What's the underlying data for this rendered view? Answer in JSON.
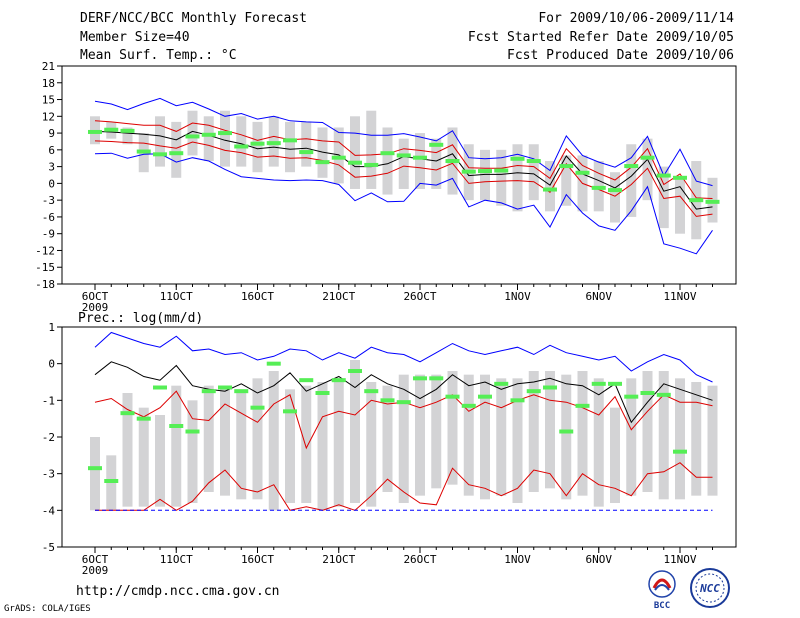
{
  "header": {
    "title": "DERF/NCC/BCC Monthly Forecast",
    "member_size": "Member Size=40",
    "variable": "Mean Surf. Temp.: °C",
    "period": "For 2009/10/06-2009/11/14",
    "started": "Fcst Started Refer Date 2009/10/05",
    "produced": "Fcst Produced Date 2009/10/06"
  },
  "footer": {
    "url": "http://cmdp.ncc.cma.gov.cn",
    "grads": "GrADS: COLA/IGES",
    "logo_bcc": "BCC",
    "logo_ncc": "NCC"
  },
  "colors": {
    "max_line": "#0000ff",
    "min_line": "#0000ff",
    "mean_line": "#000000",
    "spread_line": "#dd0000",
    "box": "#d3d3d5",
    "obs_bar": "#55ee55",
    "floor_line": "#0000ff"
  },
  "chart_data": [
    {
      "type": "line",
      "title": "Mean Surf. Temp.: °C",
      "xlabel": "",
      "ylabel": "",
      "x_tick_labels": [
        "6OCT",
        "11OCT",
        "16OCT",
        "21OCT",
        "26OCT",
        "1NOV",
        "6NOV",
        "11NOV"
      ],
      "x_tick_days": [
        1,
        6,
        11,
        16,
        21,
        27,
        32,
        37
      ],
      "x_year_label": "2009",
      "ylim": [
        -18,
        21
      ],
      "y_ticks": [
        21,
        18,
        15,
        12,
        9,
        6,
        3,
        0,
        -3,
        -6,
        -9,
        -12,
        -15,
        -18
      ],
      "day_range": [
        1,
        39
      ],
      "series": [
        {
          "name": "max",
          "values": [
            14.7,
            14.2,
            13.2,
            14.3,
            15.2,
            13.9,
            14.5,
            13.3,
            12.0,
            12.5,
            11.5,
            12.0,
            11.2,
            11.0,
            10.9,
            9.1,
            9.0,
            8.6,
            8.6,
            8.9,
            8.3,
            7.6,
            9.4,
            4.6,
            4.4,
            4.6,
            5.2,
            4.4,
            2.3,
            8.5,
            5.0,
            3.8,
            2.9,
            4.6,
            8.4,
            1.4,
            6.1,
            0.4,
            -0.4
          ]
        },
        {
          "name": "upper",
          "values": [
            11.2,
            11.0,
            10.7,
            10.4,
            10.4,
            9.3,
            10.8,
            10.4,
            9.5,
            8.7,
            7.7,
            8.4,
            7.8,
            8.0,
            7.6,
            7.4,
            5.0,
            5.1,
            5.3,
            6.2,
            5.9,
            5.5,
            6.9,
            2.8,
            2.7,
            2.7,
            3.2,
            3.0,
            0.9,
            6.2,
            3.2,
            1.8,
            0.6,
            2.9,
            6.2,
            -0.2,
            1.7,
            -2.6,
            -2.7
          ]
        },
        {
          "name": "mean",
          "values": [
            9.3,
            9.2,
            9.0,
            8.8,
            8.5,
            7.8,
            9.3,
            8.6,
            7.7,
            7.1,
            6.2,
            6.5,
            6.1,
            6.3,
            5.6,
            5.1,
            3.0,
            3.0,
            3.5,
            4.8,
            4.4,
            4.0,
            5.3,
            1.4,
            1.6,
            1.6,
            1.9,
            1.7,
            -0.3,
            4.9,
            1.7,
            0.5,
            -0.8,
            1.3,
            4.3,
            -1.4,
            -0.6,
            -4.6,
            -4.2
          ]
        },
        {
          "name": "lower",
          "values": [
            7.6,
            7.5,
            7.3,
            7.2,
            6.7,
            6.3,
            7.4,
            6.8,
            5.9,
            5.5,
            4.7,
            4.9,
            4.5,
            4.6,
            4.1,
            3.3,
            1.1,
            1.3,
            1.8,
            3.1,
            2.8,
            2.4,
            3.6,
            0.0,
            0.3,
            0.4,
            0.5,
            0.3,
            -1.6,
            3.5,
            0.0,
            -1.1,
            -2.3,
            -0.2,
            2.7,
            -2.7,
            -2.3,
            -5.9,
            -5.5
          ]
        },
        {
          "name": "min",
          "values": [
            5.3,
            5.4,
            4.5,
            5.2,
            5.3,
            3.8,
            4.6,
            4.0,
            2.5,
            1.2,
            0.9,
            0.6,
            0.5,
            0.6,
            0.5,
            -0.2,
            -3.1,
            -1.7,
            -3.3,
            -3.2,
            0.0,
            -0.3,
            0.9,
            -4.2,
            -3.0,
            -3.5,
            -4.6,
            -3.9,
            -7.8,
            -2.0,
            -5.3,
            -7.6,
            -8.4,
            -4.9,
            -0.6,
            -10.8,
            -11.6,
            -12.6,
            -8.4
          ]
        }
      ],
      "boxes": [
        [
          7,
          12
        ],
        [
          8,
          11
        ],
        [
          7,
          10
        ],
        [
          2,
          9
        ],
        [
          3,
          12
        ],
        [
          1,
          11
        ],
        [
          5,
          13
        ],
        [
          4,
          12
        ],
        [
          3,
          13
        ],
        [
          3,
          12
        ],
        [
          2,
          11
        ],
        [
          3,
          12
        ],
        [
          2,
          11
        ],
        [
          3,
          11
        ],
        [
          1,
          10
        ],
        [
          0,
          10
        ],
        [
          -1,
          12
        ],
        [
          -1,
          13
        ],
        [
          -2,
          10
        ],
        [
          -1,
          8
        ],
        [
          -1,
          9
        ],
        [
          -1,
          8
        ],
        [
          -2,
          10
        ],
        [
          -3,
          7
        ],
        [
          -3,
          6
        ],
        [
          -4,
          6
        ],
        [
          -5,
          7
        ],
        [
          -3,
          7
        ],
        [
          -5,
          4
        ],
        [
          -4,
          5
        ],
        [
          -5,
          5
        ],
        [
          -5,
          4
        ],
        [
          -7,
          2
        ],
        [
          -6,
          7
        ],
        [
          -3,
          8
        ],
        [
          -8,
          3
        ],
        [
          -9,
          1
        ],
        [
          -10,
          4
        ],
        [
          -7,
          1
        ]
      ],
      "observed": [
        9.2,
        9.6,
        9.4,
        5.7,
        5.2,
        5.4,
        8.4,
        8.7,
        9.0,
        6.6,
        7.1,
        7.2,
        7.7,
        5.6,
        3.8,
        4.6,
        3.7,
        3.3,
        5.4,
        5.0,
        4.6,
        6.9,
        4.0,
        2.1,
        2.2,
        2.3,
        4.4,
        4.0,
        -1.1,
        3.1,
        1.9,
        -0.8,
        -1.2,
        3.1,
        4.6,
        1.4,
        1.0,
        -3.0,
        -3.3
      ]
    },
    {
      "type": "line",
      "title": "Prec.: log(mm/d)",
      "xlabel": "",
      "ylabel": "",
      "x_tick_labels": [
        "6OCT",
        "11OCT",
        "16OCT",
        "21OCT",
        "26OCT",
        "1NOV",
        "6NOV",
        "11NOV"
      ],
      "x_tick_days": [
        1,
        6,
        11,
        16,
        21,
        27,
        32,
        37
      ],
      "x_year_label": "2009",
      "ylim": [
        -5,
        1
      ],
      "y_ticks": [
        1,
        0,
        -1,
        -2,
        -3,
        -4,
        -5
      ],
      "day_range": [
        1,
        39
      ],
      "series": [
        {
          "name": "max",
          "values": [
            0.45,
            0.85,
            0.7,
            0.55,
            0.45,
            0.75,
            0.35,
            0.4,
            0.25,
            0.3,
            0.1,
            0.2,
            0.4,
            0.35,
            0.1,
            0.3,
            0.15,
            0.45,
            0.3,
            0.25,
            0.05,
            0.3,
            0.55,
            0.35,
            0.25,
            0.35,
            0.45,
            0.25,
            0.5,
            0.3,
            0.2,
            0.1,
            0.2,
            -0.2,
            0.05,
            0.25,
            0.1,
            -0.3,
            -0.5
          ]
        },
        {
          "name": "mean",
          "values": [
            -0.3,
            0.05,
            -0.1,
            -0.35,
            -0.45,
            -0.05,
            -0.6,
            -0.7,
            -0.75,
            -0.55,
            -0.8,
            -0.6,
            -0.25,
            -0.75,
            -0.55,
            -0.35,
            -0.65,
            -0.3,
            -0.55,
            -0.7,
            -0.95,
            -0.7,
            -0.3,
            -0.6,
            -0.5,
            -0.7,
            -0.55,
            -0.5,
            -0.4,
            -0.55,
            -0.6,
            -0.85,
            -0.55,
            -1.6,
            -1.05,
            -0.55,
            -0.7,
            -0.85,
            -1.0
          ]
        },
        {
          "name": "upper",
          "values": [
            -1.05,
            -0.95,
            -1.25,
            -1.45,
            -1.2,
            -0.75,
            -1.5,
            -1.55,
            -1.1,
            -1.35,
            -1.6,
            -1.1,
            -0.85,
            -2.3,
            -1.45,
            -1.3,
            -1.4,
            -1.0,
            -1.1,
            -1.05,
            -1.2,
            -1.05,
            -0.85,
            -1.3,
            -1.05,
            -1.2,
            -1.0,
            -0.85,
            -1.0,
            -1.05,
            -1.2,
            -1.4,
            -0.9,
            -1.8,
            -1.3,
            -0.85,
            -1.05,
            -1.05,
            -1.15
          ]
        },
        {
          "name": "lower",
          "values": [
            -4.0,
            -4.0,
            -4.0,
            -4.0,
            -3.7,
            -4.0,
            -3.75,
            -3.25,
            -2.9,
            -3.4,
            -3.5,
            -3.3,
            -4.0,
            -3.9,
            -4.0,
            -3.85,
            -4.0,
            -3.6,
            -3.15,
            -3.5,
            -3.8,
            -3.85,
            -2.85,
            -3.3,
            -3.4,
            -3.6,
            -3.4,
            -2.9,
            -3.0,
            -3.6,
            -3.0,
            -3.3,
            -3.4,
            -3.6,
            -3.0,
            -2.95,
            -2.7,
            -3.1,
            -3.1
          ]
        },
        {
          "name": "floor",
          "values": [
            -4,
            -4,
            -4,
            -4,
            -4,
            -4,
            -4,
            -4,
            -4,
            -4,
            -4,
            -4,
            -4,
            -4,
            -4,
            -4,
            -4,
            -4,
            -4,
            -4,
            -4,
            -4,
            -4,
            -4,
            -4,
            -4,
            -4,
            -4,
            -4,
            -4,
            -4,
            -4,
            -4,
            -4,
            -4,
            -4,
            -4,
            -4,
            -4
          ]
        }
      ],
      "boxes": [
        [
          -4,
          -2
        ],
        [
          -4,
          -2.5
        ],
        [
          -3.9,
          -0.8
        ],
        [
          -3.9,
          -1.2
        ],
        [
          -3.9,
          -1.4
        ],
        [
          -3.9,
          -0.6
        ],
        [
          -3.8,
          -1
        ],
        [
          -3.5,
          -0.6
        ],
        [
          -3.6,
          -0.6
        ],
        [
          -3.7,
          -0.8
        ],
        [
          -3.7,
          -0.4
        ],
        [
          -4,
          -0.2
        ],
        [
          -3.8,
          -0.7
        ],
        [
          -3.8,
          -0.6
        ],
        [
          -4,
          -0.5
        ],
        [
          -3.9,
          -0.4
        ],
        [
          -3.8,
          0.1
        ],
        [
          -3.9,
          -0.5
        ],
        [
          -3.5,
          -0.6
        ],
        [
          -3.8,
          -0.3
        ],
        [
          -3.6,
          -0.3
        ],
        [
          -3.4,
          -0.3
        ],
        [
          -3.3,
          -0.2
        ],
        [
          -3.6,
          -0.3
        ],
        [
          -3.7,
          -0.3
        ],
        [
          -3.6,
          -0.4
        ],
        [
          -3.8,
          -0.4
        ],
        [
          -3.5,
          -0.2
        ],
        [
          -3.4,
          -0.2
        ],
        [
          -3.7,
          -0.3
        ],
        [
          -3.6,
          -0.2
        ],
        [
          -3.9,
          -0.4
        ],
        [
          -3.8,
          -1.2
        ],
        [
          -3.6,
          -0.4
        ],
        [
          -3.5,
          -0.2
        ],
        [
          -3.7,
          -0.2
        ],
        [
          -3.7,
          -0.4
        ],
        [
          -3.6,
          -0.5
        ],
        [
          -3.6,
          -0.6
        ]
      ],
      "observed": [
        -2.85,
        -3.2,
        -1.35,
        -1.5,
        -0.65,
        -1.7,
        -1.85,
        -0.75,
        -0.65,
        -0.75,
        -1.2,
        0.0,
        -1.3,
        -0.45,
        -0.8,
        -0.45,
        -0.2,
        -0.75,
        -1.0,
        -1.05,
        -0.4,
        -0.4,
        -0.9,
        -1.15,
        -0.9,
        -0.55,
        -1.0,
        -0.75,
        -0.65,
        -1.85,
        -1.15,
        -0.55,
        -0.55,
        -0.9,
        -0.8,
        -0.85,
        -2.4
      ]
    }
  ]
}
